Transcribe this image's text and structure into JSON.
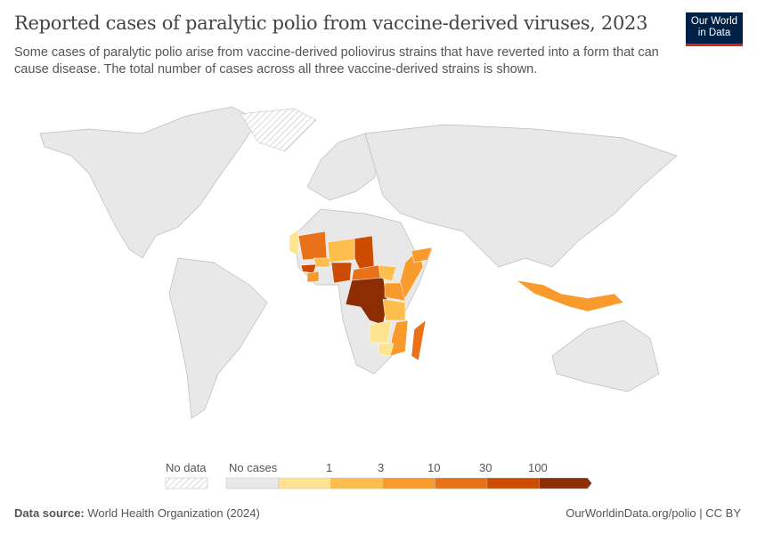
{
  "title": "Reported cases of paralytic polio from vaccine-derived viruses, 2023",
  "subtitle": "Some cases of paralytic polio arise from vaccine-derived poliovirus strains that have reverted into a form that can cause disease. The total number of cases across all three vaccine-derived strains is shown.",
  "logo": "Our World in Data",
  "legend": {
    "no_data": "No data",
    "no_cases": "No cases",
    "ticks": [
      "1",
      "3",
      "10",
      "30",
      "100"
    ],
    "colors": {
      "no_cases": "#e8e8e8",
      "bins": [
        "#fee391",
        "#fdbe4d",
        "#f99a2c",
        "#e8711a",
        "#cc4c02",
        "#8c2d04"
      ]
    }
  },
  "footer": {
    "source_label": "Data source:",
    "source": "World Health Organization (2024)",
    "link": "OurWorldinData.org/polio | CC BY"
  },
  "chart_data": {
    "type": "choropleth",
    "year": 2023,
    "bins": [
      "0",
      "0-1",
      "1-3",
      "3-10",
      "10-30",
      "30-100",
      "100+"
    ],
    "regions": [
      {
        "name": "Democratic Republic of Congo",
        "bin": "100+"
      },
      {
        "name": "Chad",
        "bin": "30-100"
      },
      {
        "name": "Nigeria",
        "bin": "30-100"
      },
      {
        "name": "Guinea",
        "bin": "30-100"
      },
      {
        "name": "Mali",
        "bin": "10-30"
      },
      {
        "name": "Central African Republic",
        "bin": "10-30"
      },
      {
        "name": "Madagascar",
        "bin": "10-30"
      },
      {
        "name": "Somalia",
        "bin": "3-10"
      },
      {
        "name": "Yemen",
        "bin": "3-10"
      },
      {
        "name": "Kenya",
        "bin": "3-10"
      },
      {
        "name": "Mozambique",
        "bin": "3-10"
      },
      {
        "name": "Cote d'Ivoire",
        "bin": "3-10"
      },
      {
        "name": "Indonesia",
        "bin": "3-10"
      },
      {
        "name": "Niger",
        "bin": "1-3"
      },
      {
        "name": "Burkina Faso",
        "bin": "1-3"
      },
      {
        "name": "South Sudan",
        "bin": "1-3"
      },
      {
        "name": "Tanzania",
        "bin": "1-3"
      },
      {
        "name": "Mauritania",
        "bin": "0-1"
      },
      {
        "name": "Zambia",
        "bin": "0-1"
      },
      {
        "name": "Zimbabwe",
        "bin": "0-1"
      }
    ]
  }
}
